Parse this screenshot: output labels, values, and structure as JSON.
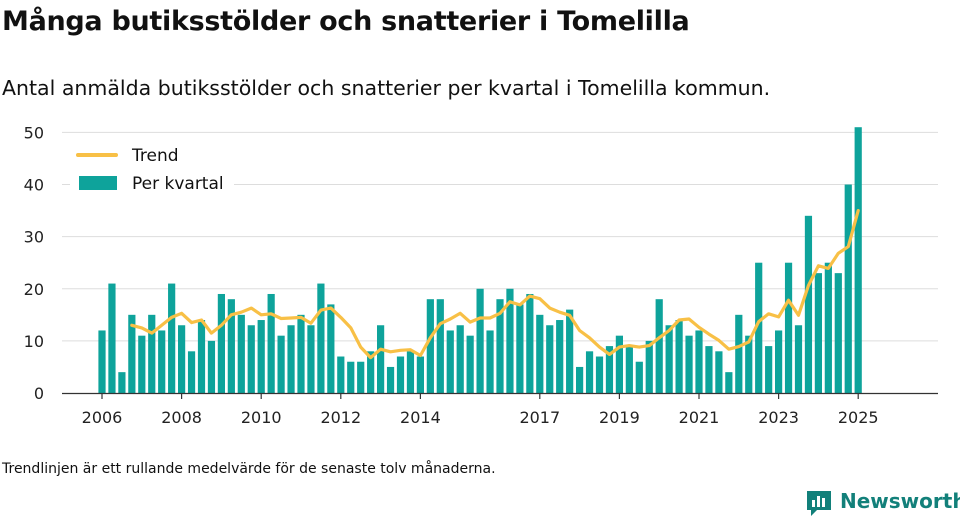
{
  "header": {
    "title": "Många butiksstölder och snatterier i Tomelilla",
    "subtitle": "Antal anmälda butiksstölder och snatterier per kvartal i Tomelilla kommun."
  },
  "footer": {
    "note": "Trendlinjen är ett rullande medelvärde för de senaste tolv månaderna.",
    "brand": "Newsworthy"
  },
  "colors": {
    "bars": "#0ea39b",
    "trend": "#f8c046",
    "grid": "#dddddd",
    "brand": "#12807a"
  },
  "chart_data": {
    "type": "bar",
    "legend": {
      "placement": "top-left",
      "entries": [
        "Trend",
        "Per kvartal"
      ]
    },
    "xlabel": "",
    "ylabel": "",
    "ylim": [
      0,
      52
    ],
    "y_ticks": [
      0,
      10,
      20,
      30,
      40,
      50
    ],
    "x_ticks": [
      "2006",
      "2008",
      "2010",
      "2012",
      "2014",
      "2017",
      "2019",
      "2021",
      "2023",
      "2025"
    ],
    "x_tick_positions": [
      2006,
      2008,
      2010,
      2012,
      2014,
      2017,
      2019,
      2021,
      2023,
      2025
    ],
    "x": [
      2006.0,
      2006.25,
      2006.5,
      2006.75,
      2007.0,
      2007.25,
      2007.5,
      2007.75,
      2008.0,
      2008.25,
      2008.5,
      2008.75,
      2009.0,
      2009.25,
      2009.5,
      2009.75,
      2010.0,
      2010.25,
      2010.5,
      2010.75,
      2011.0,
      2011.25,
      2011.5,
      2011.75,
      2012.0,
      2012.25,
      2012.5,
      2012.75,
      2013.0,
      2013.25,
      2013.5,
      2013.75,
      2014.0,
      2014.25,
      2014.5,
      2014.75,
      2015.0,
      2015.25,
      2015.5,
      2015.75,
      2016.0,
      2016.25,
      2016.5,
      2016.75,
      2017.0,
      2017.25,
      2017.5,
      2017.75,
      2018.0,
      2018.25,
      2018.5,
      2018.75,
      2019.0,
      2019.25,
      2019.5,
      2019.75,
      2020.0,
      2020.25,
      2020.5,
      2020.75,
      2021.0,
      2021.25,
      2021.5,
      2021.75,
      2022.0,
      2022.25,
      2022.5,
      2022.75,
      2023.0,
      2023.25,
      2023.5,
      2023.75,
      2024.0,
      2024.25,
      2024.5,
      2024.75,
      2025.0
    ],
    "series": [
      {
        "name": "Per kvartal",
        "type": "bar",
        "values": [
          12,
          21,
          4,
          15,
          11,
          15,
          12,
          21,
          13,
          8,
          14,
          10,
          19,
          18,
          15,
          13,
          14,
          19,
          11,
          13,
          15,
          13,
          21,
          17,
          7,
          6,
          6,
          8,
          13,
          5,
          7,
          8,
          7,
          18,
          18,
          12,
          13,
          11,
          20,
          12,
          18,
          20,
          17,
          19,
          15,
          13,
          14,
          16,
          5,
          8,
          7,
          9,
          11,
          9,
          6,
          10,
          18,
          13,
          14,
          11,
          12,
          9,
          8,
          4,
          15,
          11,
          25,
          9,
          12,
          25,
          13,
          34,
          23,
          25,
          23,
          40,
          51
        ]
      },
      {
        "name": "Trend",
        "type": "line",
        "values": [
          null,
          null,
          null,
          13,
          12.5,
          11.5,
          13,
          14.5,
          15.3,
          13.5,
          14,
          11.5,
          13,
          15,
          15.5,
          16.3,
          15,
          15.2,
          14.3,
          14.4,
          14.5,
          13.4,
          15.9,
          16.3,
          14.5,
          12.5,
          8.8,
          6.8,
          8.4,
          7.9,
          8.2,
          8.3,
          7.2,
          10.6,
          13.3,
          14.2,
          15.3,
          13.6,
          14.4,
          14.4,
          15.3,
          17.5,
          16.9,
          18.6,
          18.1,
          16.3,
          15.5,
          14.9,
          12,
          10.6,
          8.8,
          7.4,
          8.8,
          9.1,
          8.8,
          9.1,
          10.6,
          12,
          14,
          14.2,
          12.6,
          11.3,
          10.1,
          8.4,
          8.9,
          9.8,
          13.7,
          15.2,
          14.6,
          17.8,
          14.9,
          20.6,
          24.4,
          23.9,
          26.8,
          28.1,
          35
        ]
      }
    ]
  }
}
